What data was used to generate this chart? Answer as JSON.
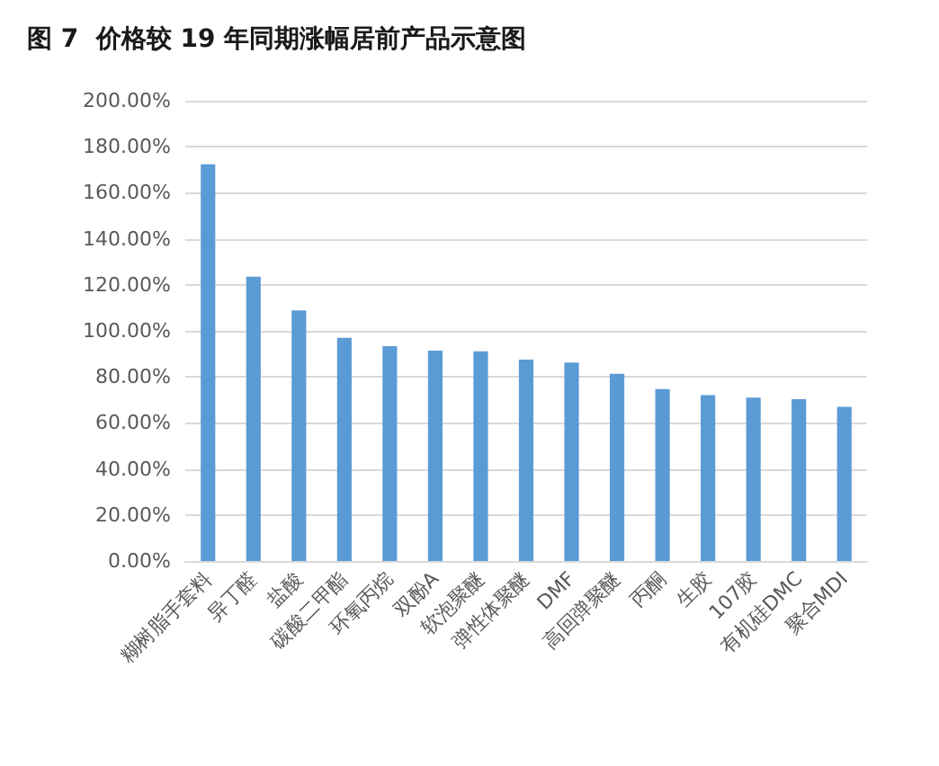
{
  "chart_data": {
    "type": "bar",
    "title": "图 7  价格较 19 年同期涨幅居前产品示意图",
    "categories": [
      "糊树脂手套料",
      "异丁醛",
      "盐酸",
      "碳酸二甲酯",
      "环氧丙烷",
      "双酚A",
      "软泡聚醚",
      "弹性体聚醚",
      "DMF",
      "高回弹聚醚",
      "丙酮",
      "生胶",
      "107胶",
      "有机硅DMC",
      "聚合MDI"
    ],
    "values": [
      172.4,
      123.5,
      108.9,
      97.0,
      93.4,
      91.4,
      91.1,
      87.5,
      86.2,
      81.3,
      74.7,
      72.1,
      71.0,
      70.3,
      67.0
    ],
    "color": "#5b9bd5",
    "ylim": [
      0,
      200
    ],
    "yticks": [
      {
        "value": 0,
        "label": "0.00%"
      },
      {
        "value": 20,
        "label": "20.00%"
      },
      {
        "value": 40,
        "label": "40.00%"
      },
      {
        "value": 60,
        "label": "60.00%"
      },
      {
        "value": 80,
        "label": "80.00%"
      },
      {
        "value": 100,
        "label": "100.00%"
      },
      {
        "value": 120,
        "label": "120.00%"
      },
      {
        "value": 140,
        "label": "140.00%"
      },
      {
        "value": 160,
        "label": "160.00%"
      },
      {
        "value": 180,
        "label": "180.00%"
      },
      {
        "value": 200,
        "label": "200.00%"
      }
    ],
    "grid": "y"
  }
}
